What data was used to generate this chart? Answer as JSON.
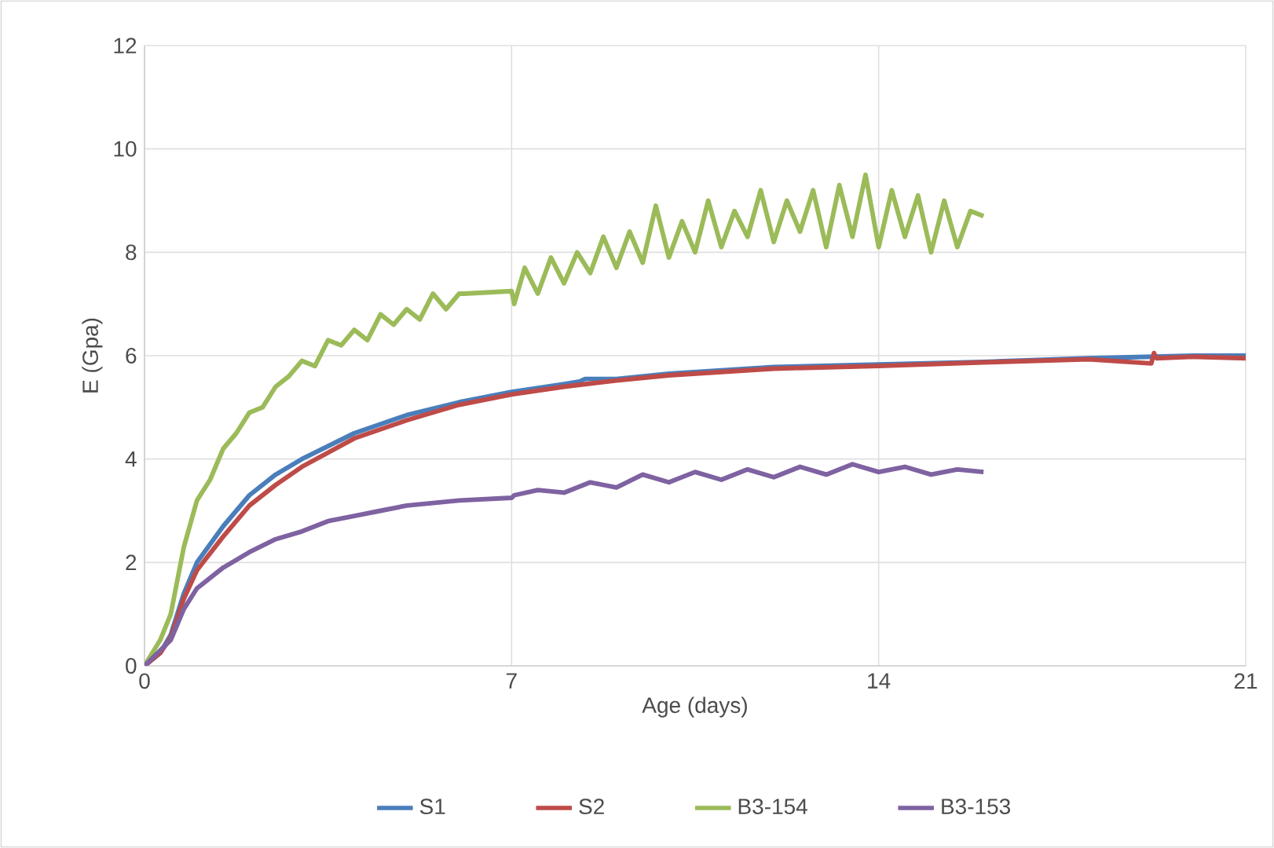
{
  "chart_data": {
    "type": "line",
    "xlabel": "Age (days)",
    "ylabel": "E (Gpa)",
    "xlim": [
      0,
      21
    ],
    "xticks": [
      0,
      7,
      14,
      21
    ],
    "ylim": [
      0,
      12
    ],
    "yticks": [
      0,
      2,
      4,
      6,
      8,
      10,
      12
    ],
    "grid": true,
    "legend": "bottom",
    "marker": "none",
    "line_style": "solid",
    "series": [
      {
        "name": "S1",
        "color": "#4a7ebb",
        "x": [
          0,
          0.3,
          0.5,
          0.75,
          1,
          1.5,
          2,
          2.5,
          3,
          4,
          5,
          6,
          7,
          8,
          8.3,
          8.4,
          9,
          10,
          12,
          14,
          16,
          18,
          20,
          21
        ],
        "values": [
          0,
          0.25,
          0.6,
          1.4,
          2.0,
          2.7,
          3.3,
          3.7,
          4.0,
          4.5,
          4.85,
          5.1,
          5.3,
          5.45,
          5.5,
          5.55,
          5.55,
          5.65,
          5.78,
          5.83,
          5.88,
          5.95,
          6.0,
          6.0
        ]
      },
      {
        "name": "S2",
        "color": "#be4b48",
        "x": [
          0,
          0.3,
          0.5,
          0.75,
          1,
          1.5,
          2,
          2.5,
          3,
          4,
          5,
          6,
          7,
          8,
          9,
          10,
          12,
          14,
          16,
          18,
          19.2,
          19.25,
          19.3,
          20,
          21
        ],
        "values": [
          0,
          0.25,
          0.55,
          1.3,
          1.85,
          2.5,
          3.1,
          3.5,
          3.85,
          4.4,
          4.75,
          5.05,
          5.25,
          5.4,
          5.52,
          5.62,
          5.75,
          5.8,
          5.87,
          5.93,
          5.85,
          6.05,
          5.95,
          5.98,
          5.95
        ]
      },
      {
        "name": "B3-154",
        "color": "#9bbb59",
        "x": [
          0,
          0.3,
          0.5,
          0.75,
          1,
          1.25,
          1.5,
          1.75,
          2,
          2.25,
          2.5,
          2.75,
          3,
          3.25,
          3.5,
          3.75,
          4,
          4.25,
          4.5,
          4.75,
          5,
          5.25,
          5.5,
          5.75,
          6,
          6.1,
          7,
          7.05,
          7.25,
          7.5,
          7.75,
          8,
          8.25,
          8.5,
          8.75,
          9,
          9.25,
          9.5,
          9.75,
          10,
          10.25,
          10.5,
          10.75,
          11,
          11.25,
          11.5,
          11.75,
          12,
          12.25,
          12.5,
          12.75,
          13,
          13.25,
          13.5,
          13.75,
          14,
          14.25,
          14.5,
          14.75,
          15,
          15.25,
          15.5,
          15.75,
          16
        ],
        "values": [
          0,
          0.5,
          1.0,
          2.3,
          3.2,
          3.6,
          4.2,
          4.5,
          4.9,
          5.0,
          5.4,
          5.6,
          5.9,
          5.8,
          6.3,
          6.2,
          6.5,
          6.3,
          6.8,
          6.6,
          6.9,
          6.7,
          7.2,
          6.9,
          7.2,
          7.2,
          7.25,
          7.0,
          7.7,
          7.2,
          7.9,
          7.4,
          8.0,
          7.6,
          8.3,
          7.7,
          8.4,
          7.8,
          8.9,
          7.9,
          8.6,
          8.0,
          9.0,
          8.1,
          8.8,
          8.3,
          9.2,
          8.2,
          9.0,
          8.4,
          9.2,
          8.1,
          9.3,
          8.3,
          9.5,
          8.1,
          9.2,
          8.3,
          9.1,
          8.0,
          9.0,
          8.1,
          8.8,
          8.7
        ]
      },
      {
        "name": "B3-153",
        "color": "#7e62a1",
        "x": [
          0,
          0.3,
          0.5,
          0.75,
          1,
          1.5,
          2,
          2.5,
          3,
          3.5,
          4,
          4.5,
          5,
          5.5,
          6,
          7,
          7.05,
          7.5,
          8,
          8.5,
          9,
          9.5,
          10,
          10.5,
          11,
          11.5,
          12,
          12.5,
          13,
          13.5,
          14,
          14.5,
          15,
          15.5,
          16
        ],
        "values": [
          0,
          0.3,
          0.5,
          1.1,
          1.5,
          1.9,
          2.2,
          2.45,
          2.6,
          2.8,
          2.9,
          3.0,
          3.1,
          3.15,
          3.2,
          3.25,
          3.3,
          3.4,
          3.35,
          3.55,
          3.45,
          3.7,
          3.55,
          3.75,
          3.6,
          3.8,
          3.65,
          3.85,
          3.7,
          3.9,
          3.75,
          3.85,
          3.7,
          3.8,
          3.75
        ]
      }
    ]
  }
}
